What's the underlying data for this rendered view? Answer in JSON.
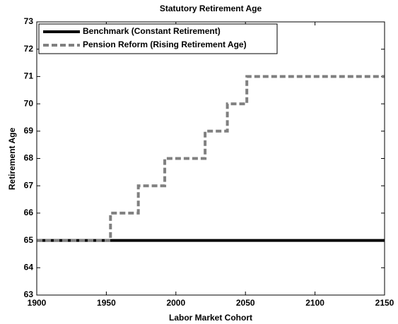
{
  "chart_data": {
    "type": "line",
    "title": "Statutory Retirement Age",
    "x_label": "Labor Market Cohort",
    "y_label": "Retirement Age",
    "x": [
      1900,
      1953,
      1953,
      1973,
      1973,
      1992,
      1992,
      2021,
      2021,
      2037,
      2037,
      2051,
      2051,
      2150
    ],
    "series": [
      {
        "name": "Benchmark (Constant Retirement)",
        "color": "#000000",
        "dash": "solid",
        "values": [
          65,
          65,
          65,
          65,
          65,
          65,
          65,
          65,
          65,
          65,
          65,
          65,
          65,
          65
        ]
      },
      {
        "name": "Pension Reform (Rising Retirement Age)",
        "color": "#808080",
        "dash": "dashed",
        "values": [
          65,
          65,
          66,
          66,
          67,
          67,
          68,
          68,
          69,
          69,
          70,
          70,
          71,
          71
        ]
      }
    ],
    "xlim": [
      1900,
      2150
    ],
    "xticks": [
      1900,
      1950,
      2000,
      2050,
      2100,
      2150
    ],
    "ylim": [
      63,
      73
    ],
    "yticks": [
      63,
      64,
      65,
      66,
      67,
      68,
      69,
      70,
      71,
      72,
      73
    ],
    "legend": "upper left",
    "grid": false
  }
}
